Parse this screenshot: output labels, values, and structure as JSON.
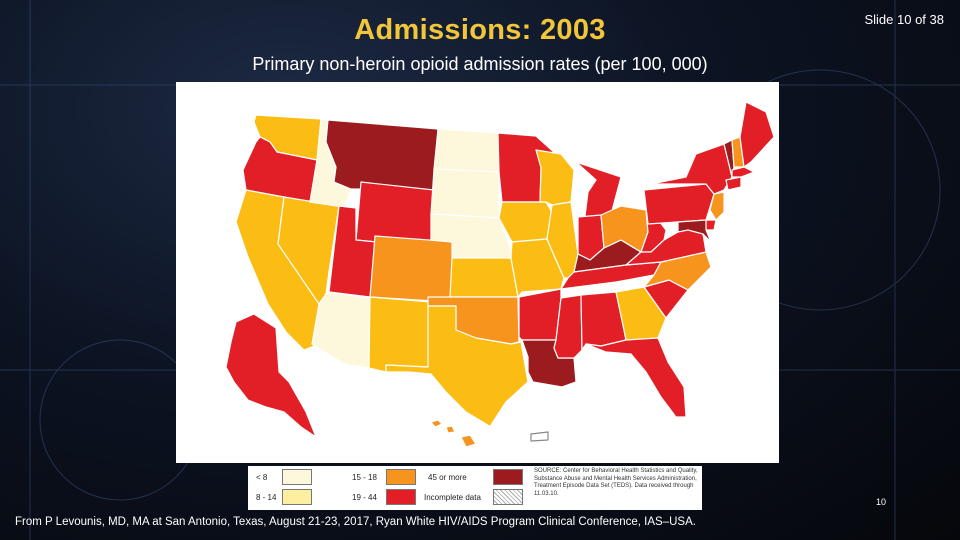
{
  "slide": {
    "title": "Admissions: 2003",
    "counter": "Slide 10 of 38",
    "subtitle": "Primary non-heroin opioid admission rates (per 100, 000)",
    "page_number": "10",
    "credit": "From P Levounis, MD, MA at San Antonio, Texas, August 21-23, 2017, Ryan White HIV/AIDS Program Clinical Conference, IAS–USA."
  },
  "colors": {
    "lt8": "#fdf7dc",
    "8to14": "#fdeea0",
    "15to18": "#f7941d",
    "19to44": "#e21f26",
    "45plus": "#9b1b1f",
    "incomplete": "#ffffff",
    "accent_title": "#f2c63a",
    "tan": "#fbbd14"
  },
  "legend": {
    "items": [
      {
        "label": "< 8",
        "color_key": "lt8"
      },
      {
        "label": "8 - 14",
        "color_key": "8to14"
      },
      {
        "label": "15 - 18",
        "color_key": "15to18"
      },
      {
        "label": "19 - 44",
        "color_key": "19to44"
      },
      {
        "label": "45 or more",
        "color_key": "45plus"
      },
      {
        "label": "Incomplete data",
        "color_key": "incomplete"
      }
    ],
    "source": "SOURCE: Center for Behavioral Health Statistics and Quality, Substance Abuse and Mental Health Services Administration, Treatment Episode Data Set (TEDS). Data received through 11.03.10."
  },
  "map": {
    "states": [
      {
        "code": "WA",
        "category": "8to14"
      },
      {
        "code": "OR",
        "category": "19to44"
      },
      {
        "code": "CA",
        "category": "8to14"
      },
      {
        "code": "NV",
        "category": "8to14"
      },
      {
        "code": "ID",
        "category": "lt8"
      },
      {
        "code": "MT",
        "category": "45plus"
      },
      {
        "code": "WY",
        "category": "19to44"
      },
      {
        "code": "UT",
        "category": "19to44"
      },
      {
        "code": "AZ",
        "category": "lt8"
      },
      {
        "code": "CO",
        "category": "15to18"
      },
      {
        "code": "NM",
        "category": "8to14"
      },
      {
        "code": "ND",
        "category": "lt8"
      },
      {
        "code": "SD",
        "category": "lt8"
      },
      {
        "code": "NE",
        "category": "lt8"
      },
      {
        "code": "KS",
        "category": "8to14"
      },
      {
        "code": "OK",
        "category": "15to18"
      },
      {
        "code": "TX",
        "category": "8to14"
      },
      {
        "code": "MN",
        "category": "19to44"
      },
      {
        "code": "IA",
        "category": "8to14"
      },
      {
        "code": "MO",
        "category": "8to14"
      },
      {
        "code": "AR",
        "category": "19to44"
      },
      {
        "code": "LA",
        "category": "45plus"
      },
      {
        "code": "WI",
        "category": "8to14"
      },
      {
        "code": "IL",
        "category": "8to14"
      },
      {
        "code": "MS",
        "category": "19to44"
      },
      {
        "code": "MI",
        "category": "19to44"
      },
      {
        "code": "IN",
        "category": "19to44"
      },
      {
        "code": "KY",
        "category": "45plus"
      },
      {
        "code": "TN",
        "category": "19to44"
      },
      {
        "code": "AL",
        "category": "19to44"
      },
      {
        "code": "OH",
        "category": "15to18"
      },
      {
        "code": "WV",
        "category": "19to44"
      },
      {
        "code": "GA",
        "category": "8to14"
      },
      {
        "code": "FL",
        "category": "19to44"
      },
      {
        "code": "SC",
        "category": "19to44"
      },
      {
        "code": "NC",
        "category": "15to18"
      },
      {
        "code": "VA",
        "category": "19to44"
      },
      {
        "code": "PA",
        "category": "19to44"
      },
      {
        "code": "NY",
        "category": "19to44"
      },
      {
        "code": "VT",
        "category": "45plus"
      },
      {
        "code": "NH",
        "category": "15to18"
      },
      {
        "code": "ME",
        "category": "19to44"
      },
      {
        "code": "MA",
        "category": "19to44"
      },
      {
        "code": "CT",
        "category": "19to44"
      },
      {
        "code": "NJ",
        "category": "15to18"
      },
      {
        "code": "DE",
        "category": "19to44"
      },
      {
        "code": "MD",
        "category": "45plus"
      },
      {
        "code": "AK",
        "category": "19to44"
      },
      {
        "code": "HI",
        "category": "15to18"
      },
      {
        "code": "PR",
        "category": "incomplete"
      }
    ]
  }
}
